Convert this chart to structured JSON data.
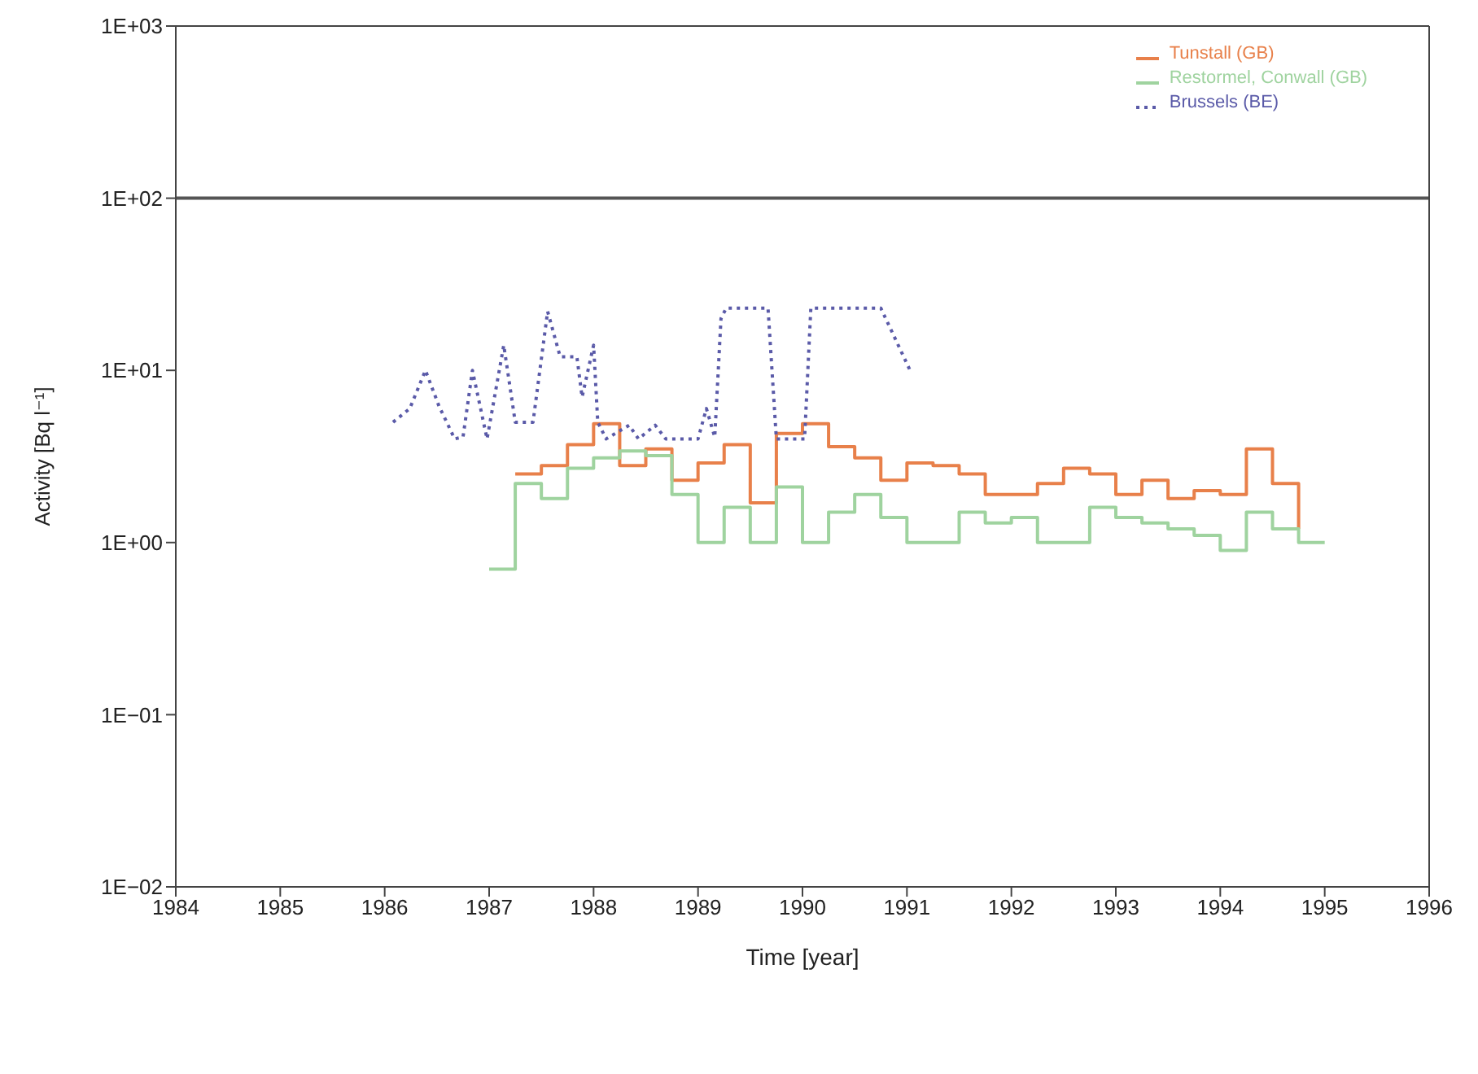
{
  "chart_data": {
    "type": "step",
    "xlabel": "Time [year]",
    "ylabel": "Activity [Bq l⁻¹]",
    "xlim": [
      1984,
      1996
    ],
    "xticks": [
      1984,
      1985,
      1986,
      1987,
      1988,
      1989,
      1990,
      1991,
      1992,
      1993,
      1994,
      1995,
      1996
    ],
    "ylim": [
      0.01,
      1000
    ],
    "yticks": [
      {
        "value": 0.01,
        "label": "1E−02"
      },
      {
        "value": 0.1,
        "label": "1E−01"
      },
      {
        "value": 1,
        "label": "1E+00"
      },
      {
        "value": 10,
        "label": "1E+01"
      },
      {
        "value": 100,
        "label": "1E+02"
      },
      {
        "value": 1000,
        "label": "1E+03"
      }
    ],
    "log": "y",
    "legend": "top right",
    "marker": "none",
    "ref_lines": [
      {
        "axis": "y",
        "value": 100,
        "color": "#555555"
      }
    ],
    "series": [
      {
        "name": "Tunstall (GB)",
        "type": "step",
        "color": "#e8804a",
        "line_style": "solid",
        "x": [
          1987.25,
          1987.5,
          1987.75,
          1988,
          1988.25,
          1988.5,
          1988.75,
          1989,
          1989.25,
          1989.5,
          1989.75,
          1990,
          1990.25,
          1990.5,
          1990.75,
          1991,
          1991.25,
          1991.5,
          1991.75,
          1992.25,
          1992.5,
          1992.75,
          1993,
          1993.25,
          1993.5,
          1993.75,
          1994,
          1994.25,
          1994.5,
          1994.75
        ],
        "values": [
          2.5,
          2.8,
          3.7,
          4.9,
          2.8,
          3.5,
          2.3,
          2.9,
          3.7,
          1.7,
          4.3,
          4.9,
          3.6,
          3.1,
          2.3,
          2.9,
          2.8,
          2.5,
          1.9,
          2.2,
          2.7,
          2.5,
          1.9,
          2.3,
          1.8,
          2,
          1.9,
          3.5,
          2.2,
          1.2
        ]
      },
      {
        "name": "Restormel, Conwall (GB)",
        "type": "step",
        "color": "#9fd39f",
        "line_style": "solid",
        "x": [
          1987,
          1987.25,
          1987.5,
          1987.75,
          1988,
          1988.25,
          1988.5,
          1988.75,
          1989,
          1989.25,
          1989.5,
          1989.75,
          1990,
          1990.25,
          1990.5,
          1990.75,
          1991,
          1991.5,
          1991.75,
          1992,
          1992.25,
          1992.75,
          1993,
          1993.25,
          1993.5,
          1993.75,
          1994,
          1994.25,
          1994.5,
          1994.75,
          1995
        ],
        "values": [
          0.7,
          2.2,
          1.8,
          2.7,
          3.1,
          3.4,
          3.2,
          1.9,
          1,
          1.6,
          1,
          2.1,
          1,
          1.5,
          1.9,
          1.4,
          1,
          1.5,
          1.3,
          1.4,
          1,
          1.6,
          1.4,
          1.3,
          1.2,
          1.1,
          0.9,
          1.5,
          1.2,
          1,
          1
        ]
      },
      {
        "name": "Brussels (BE)",
        "type": "line",
        "color": "#5a5aa8",
        "line_style": "dotted",
        "x": [
          1986.08,
          1986.24,
          1986.39,
          1986.52,
          1986.67,
          1986.75,
          1986.84,
          1986.98,
          1987.14,
          1987.25,
          1987.42,
          1987.56,
          1987.68,
          1987.84,
          1987.89,
          1988,
          1988.04,
          1988.12,
          1988.34,
          1988.43,
          1988.59,
          1988.69,
          1989,
          1989.08,
          1989.16,
          1989.22,
          1989.27,
          1989.67,
          1989.75,
          1990.02,
          1990.08,
          1990.75,
          1991.03
        ],
        "values": [
          5,
          6,
          10,
          6.2,
          4,
          4.1,
          10,
          4,
          14,
          5,
          5,
          22,
          12,
          12,
          7,
          14,
          5,
          4,
          4.8,
          4,
          4.8,
          4,
          4,
          6,
          4.1,
          20,
          23,
          23,
          4,
          4,
          23,
          23,
          10
        ]
      }
    ]
  }
}
